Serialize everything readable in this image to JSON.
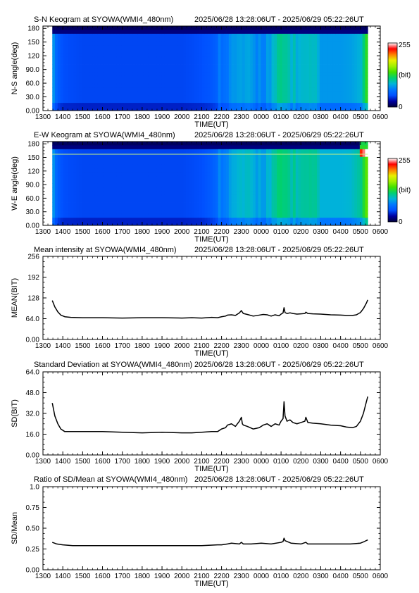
{
  "palette": {
    "keo_stops": [
      "#00003a",
      "#0000a0",
      "#0050ff",
      "#0078ff",
      "#00b4d8",
      "#00d070",
      "#40e000",
      "#a0f000",
      "#e8f000",
      "#ff8000",
      "#ff0000",
      "#ffffff"
    ]
  },
  "chart_data": [
    {
      "type": "heatmap",
      "title": "S-N Keogram at SYOWA(WMI4_480nm)",
      "subtitle": "2025/06/28 13:28:06UT - 2025/06/29 05:22:26UT",
      "xlabel": "TIME(UT)",
      "ylabel": "N-S angle(deg)",
      "x_tick_labels": [
        "1300",
        "1400",
        "1500",
        "1600",
        "1700",
        "1800",
        "1900",
        "2000",
        "2100",
        "2200",
        "2300",
        "0000",
        "0100",
        "0200",
        "0300",
        "0400",
        "0500",
        "0600"
      ],
      "y_tick_labels": [
        "0.00",
        "30.0",
        "60.0",
        "90.0",
        "120",
        "150",
        "180"
      ],
      "y_ticks": [
        0,
        30,
        60,
        90,
        120,
        150,
        180
      ],
      "ylim": [
        0,
        185
      ],
      "xlim_hours": [
        13,
        30
      ],
      "data_range_hours": [
        13.47,
        29.37
      ],
      "colorbar": {
        "labels": [
          "255",
          "(bit)",
          "0"
        ],
        "range": [
          0,
          255
        ]
      },
      "profile_hours": [
        13.47,
        13.7,
        14.0,
        15.0,
        16.0,
        17.0,
        18.0,
        19.0,
        20.0,
        21.0,
        21.5,
        22.0,
        22.5,
        23.0,
        23.5,
        24.0,
        24.5,
        25.0,
        25.5,
        26.0,
        26.5,
        27.0,
        27.5,
        28.0,
        28.5,
        29.0,
        29.37
      ],
      "profile_levels": [
        0.35,
        0.22,
        0.18,
        0.17,
        0.17,
        0.17,
        0.17,
        0.17,
        0.17,
        0.18,
        0.2,
        0.24,
        0.27,
        0.3,
        0.28,
        0.27,
        0.3,
        0.4,
        0.36,
        0.33,
        0.33,
        0.32,
        0.32,
        0.32,
        0.33,
        0.36,
        0.55
      ]
    },
    {
      "type": "heatmap",
      "title": "E-W Keogram at SYOWA(WMI4_480nm)",
      "subtitle": "2025/06/28 13:28:06UT - 2025/06/29 05:22:26UT",
      "xlabel": "TIME(UT)",
      "ylabel": "W-E angle(deg)",
      "x_tick_labels": [
        "1300",
        "1400",
        "1500",
        "1600",
        "1700",
        "1800",
        "1900",
        "2000",
        "2100",
        "2200",
        "2300",
        "0000",
        "0100",
        "0200",
        "0300",
        "0400",
        "0500",
        "0600"
      ],
      "y_tick_labels": [
        "0.00",
        "30.0",
        "60.0",
        "90.0",
        "120",
        "150",
        "180"
      ],
      "y_ticks": [
        0,
        30,
        60,
        90,
        120,
        150,
        180
      ],
      "ylim": [
        0,
        185
      ],
      "xlim_hours": [
        13,
        30
      ],
      "data_range_hours": [
        13.47,
        29.37
      ],
      "colorbar": {
        "labels": [
          "255",
          "(bit)",
          "0"
        ],
        "range": [
          0,
          255
        ]
      },
      "profile_hours": [
        13.47,
        13.7,
        14.0,
        15.0,
        16.0,
        17.0,
        18.0,
        19.0,
        20.0,
        21.0,
        21.5,
        22.0,
        22.5,
        23.0,
        23.5,
        24.0,
        24.5,
        25.0,
        25.5,
        26.0,
        26.5,
        27.0,
        27.5,
        28.0,
        28.5,
        29.0,
        29.37
      ],
      "profile_levels": [
        0.35,
        0.22,
        0.18,
        0.17,
        0.17,
        0.17,
        0.17,
        0.17,
        0.17,
        0.18,
        0.21,
        0.26,
        0.3,
        0.34,
        0.32,
        0.31,
        0.34,
        0.42,
        0.39,
        0.37,
        0.37,
        0.36,
        0.36,
        0.36,
        0.37,
        0.42,
        0.6
      ]
    },
    {
      "type": "line",
      "title": "Mean intensity at SYOWA(WMI4_480nm)",
      "subtitle": "2025/06/28 13:28:06UT - 2025/06/29 05:22:26UT",
      "xlabel": "TIME(UT)",
      "ylabel": "MEAN(BIT)",
      "x_tick_labels": [
        "1300",
        "1400",
        "1500",
        "1600",
        "1700",
        "1800",
        "1900",
        "2000",
        "2100",
        "2200",
        "2300",
        "0000",
        "0100",
        "0200",
        "0300",
        "0400",
        "0500",
        "0600"
      ],
      "y_tick_labels": [
        "0.00",
        "64.0",
        "128",
        "192",
        "256"
      ],
      "y_ticks": [
        0,
        64,
        128,
        192,
        256
      ],
      "ylim": [
        0,
        256
      ],
      "xlim_hours": [
        13,
        30
      ],
      "x": [
        13.47,
        13.6,
        13.75,
        13.9,
        14.1,
        14.4,
        15.0,
        16.0,
        17.0,
        18.0,
        19.0,
        20.0,
        20.5,
        21.0,
        21.5,
        21.8,
        22.0,
        22.2,
        22.3,
        22.5,
        22.7,
        22.9,
        23.0,
        23.05,
        23.1,
        23.3,
        23.6,
        23.9,
        24.1,
        24.3,
        24.5,
        24.7,
        24.9,
        25.0,
        25.1,
        25.15,
        25.2,
        25.3,
        25.45,
        25.6,
        25.8,
        26.0,
        26.2,
        26.25,
        26.35,
        26.6,
        27.0,
        27.5,
        28.0,
        28.3,
        28.6,
        28.8,
        29.0,
        29.15,
        29.3,
        29.37
      ],
      "y": [
        120,
        100,
        85,
        75,
        70,
        68,
        67,
        67,
        66,
        67,
        67,
        66,
        67,
        66,
        68,
        67,
        70,
        72,
        75,
        76,
        74,
        82,
        89,
        84,
        80,
        77,
        72,
        75,
        77,
        76,
        72,
        76,
        73,
        78,
        82,
        98,
        83,
        80,
        82,
        80,
        78,
        79,
        80,
        84,
        80,
        79,
        78,
        76,
        75,
        74,
        74,
        76,
        83,
        95,
        112,
        122
      ]
    },
    {
      "type": "line",
      "title": "Standard Deviation at SYOWA(WMI4_480nm)",
      "subtitle": "2025/06/28 13:28:06UT - 2025/06/29 05:22:26UT",
      "xlabel": "TIME(UT)",
      "ylabel": "SD(BIT)",
      "x_tick_labels": [
        "1300",
        "1400",
        "1500",
        "1600",
        "1700",
        "1800",
        "1900",
        "2000",
        "2100",
        "2200",
        "2300",
        "0000",
        "0100",
        "0200",
        "0300",
        "0400",
        "0500",
        "0600"
      ],
      "y_tick_labels": [
        "0.00",
        "16.0",
        "32.0",
        "48.0",
        "64.0"
      ],
      "y_ticks": [
        0,
        16,
        32,
        48,
        64
      ],
      "ylim": [
        0,
        64
      ],
      "xlim_hours": [
        13,
        30
      ],
      "x": [
        13.47,
        13.6,
        13.75,
        13.9,
        14.1,
        14.4,
        15.0,
        16.0,
        17.0,
        18.0,
        19.0,
        20.0,
        20.5,
        21.0,
        21.5,
        21.8,
        22.0,
        22.2,
        22.3,
        22.5,
        22.7,
        22.9,
        23.0,
        23.05,
        23.1,
        23.3,
        23.6,
        23.9,
        24.1,
        24.3,
        24.5,
        24.7,
        24.9,
        25.0,
        25.1,
        25.15,
        25.2,
        25.3,
        25.45,
        25.6,
        25.8,
        26.0,
        26.2,
        26.25,
        26.35,
        26.6,
        27.0,
        27.5,
        28.0,
        28.3,
        28.6,
        28.8,
        29.0,
        29.15,
        29.3,
        29.37
      ],
      "y": [
        40,
        30,
        24,
        20,
        18,
        18,
        18,
        18,
        17.5,
        17,
        17.5,
        17,
        17,
        17.5,
        18,
        18,
        20,
        21,
        23,
        24,
        22,
        26,
        29,
        24,
        23,
        22,
        20,
        21,
        23,
        24,
        22,
        24,
        23,
        26,
        28,
        41,
        30,
        26,
        27,
        25,
        24,
        25,
        26,
        29,
        25,
        24.5,
        24,
        23,
        22.5,
        21.5,
        21,
        22,
        26,
        32,
        41,
        45
      ]
    },
    {
      "type": "line",
      "title": "Ratio of SD/Mean at SYOWA(WMI4_480nm)",
      "subtitle": "2025/06/28 13:28:06UT - 2025/06/29 05:22:26UT",
      "xlabel": "TIME(UT)",
      "ylabel": "SD/Mean",
      "x_tick_labels": [
        "1300",
        "1400",
        "1500",
        "1600",
        "1700",
        "1800",
        "1900",
        "2000",
        "2100",
        "2200",
        "2300",
        "0000",
        "0100",
        "0200",
        "0300",
        "0400",
        "0500",
        "0600"
      ],
      "y_tick_labels": [
        "0.00",
        "0.25",
        "0.50",
        "0.75",
        "1.0"
      ],
      "y_ticks": [
        0,
        0.25,
        0.5,
        0.75,
        1.0
      ],
      "ylim": [
        0,
        1.0
      ],
      "xlim_hours": [
        13,
        30
      ],
      "x": [
        13.47,
        13.7,
        14.0,
        14.5,
        15.0,
        16.0,
        17.0,
        18.0,
        19.0,
        20.0,
        21.0,
        21.8,
        22.0,
        22.3,
        22.5,
        22.9,
        23.0,
        23.1,
        23.5,
        24.0,
        24.5,
        25.0,
        25.1,
        25.15,
        25.2,
        25.5,
        26.0,
        26.25,
        26.35,
        27.0,
        28.0,
        28.5,
        29.0,
        29.2,
        29.37
      ],
      "y": [
        0.33,
        0.31,
        0.3,
        0.29,
        0.29,
        0.29,
        0.29,
        0.29,
        0.29,
        0.29,
        0.29,
        0.3,
        0.3,
        0.31,
        0.32,
        0.31,
        0.33,
        0.31,
        0.31,
        0.32,
        0.31,
        0.33,
        0.34,
        0.38,
        0.35,
        0.32,
        0.31,
        0.33,
        0.31,
        0.31,
        0.31,
        0.31,
        0.32,
        0.34,
        0.36
      ]
    }
  ]
}
